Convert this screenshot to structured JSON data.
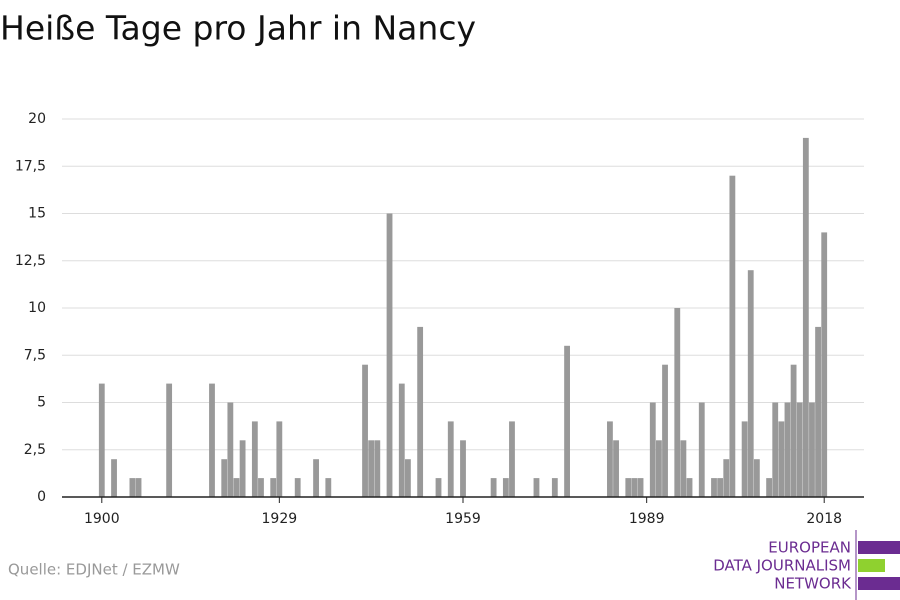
{
  "chart_data": {
    "type": "bar",
    "title": "Heiße Tage pro Jahr in Nancy",
    "x": [
      1900,
      1902,
      1905,
      1906,
      1911,
      1918,
      1920,
      1921,
      1922,
      1923,
      1925,
      1926,
      1928,
      1929,
      1932,
      1935,
      1937,
      1943,
      1944,
      1945,
      1947,
      1949,
      1950,
      1952,
      1955,
      1957,
      1959,
      1964,
      1966,
      1967,
      1971,
      1974,
      1976,
      1983,
      1984,
      1986,
      1987,
      1988,
      1990,
      1991,
      1992,
      1994,
      1995,
      1996,
      1998,
      2000,
      2001,
      2002,
      2003,
      2005,
      2006,
      2007,
      2009,
      2010,
      2011,
      2012,
      2013,
      2014,
      2015,
      2016,
      2017,
      2018
    ],
    "values": [
      6,
      2,
      1,
      1,
      6,
      6,
      2,
      5,
      1,
      3,
      4,
      1,
      1,
      4,
      1,
      2,
      1,
      7,
      3,
      3,
      15,
      6,
      2,
      9,
      1,
      4,
      3,
      1,
      1,
      4,
      1,
      1,
      8,
      4,
      3,
      1,
      1,
      1,
      5,
      3,
      7,
      10,
      3,
      1,
      5,
      1,
      1,
      2,
      17,
      4,
      12,
      2,
      1,
      5,
      4,
      5,
      7,
      5,
      19,
      5,
      9,
      14
    ],
    "color": "#999999",
    "xlim": [
      1893.5,
      2024.5
    ],
    "xticks": [
      1900,
      1929,
      1959,
      1989,
      2018
    ],
    "ylim": [
      0,
      20
    ],
    "yticks": [
      0,
      {
        "value": 2.5,
        "label": "2,5"
      },
      5,
      {
        "value": 7.5,
        "label": "7,5"
      },
      10,
      {
        "value": 12.5,
        "label": "12,5"
      },
      15,
      {
        "value": 17.5,
        "label": "17,5"
      },
      20
    ],
    "grid": true,
    "source": "Quelle: EDJNet / EZMW",
    "logo": [
      "EUROPEAN",
      "DATA JOURNALISM",
      "NETWORK"
    ]
  }
}
